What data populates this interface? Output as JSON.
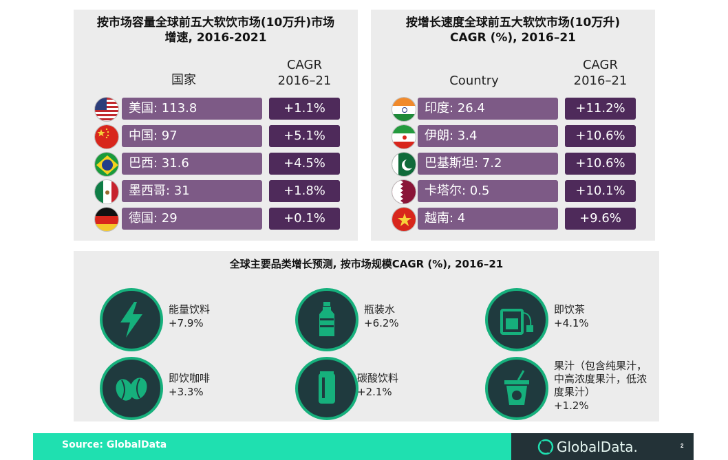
{
  "left_panel": {
    "title_line1": "按市场容量全球前五大软饮市场(10万升)市场",
    "title_line2": "增速, 2016-2021",
    "col_country": "国家",
    "col_cagr_line1": "CAGR",
    "col_cagr_line2": "2016–21",
    "rows": [
      {
        "flag": "usa-flag-icon",
        "label": "美国: 113.8",
        "cagr": "+1.1%"
      },
      {
        "flag": "china-flag-icon",
        "label": "中国: 97",
        "cagr": "+5.1%"
      },
      {
        "flag": "brazil-flag-icon",
        "label": "巴西: 31.6",
        "cagr": "+4.5%"
      },
      {
        "flag": "mexico-flag-icon",
        "label": "墨西哥: 31",
        "cagr": "+1.8%"
      },
      {
        "flag": "germany-flag-icon",
        "label": "德国: 29",
        "cagr": "+0.1%"
      }
    ]
  },
  "right_panel": {
    "title_line1": "按增长速度全球前五大软饮市场(10万升)",
    "title_line2": "CAGR (%), 2016–21",
    "col_country": "Country",
    "col_cagr_line1": "CAGR",
    "col_cagr_line2": "2016–21",
    "rows": [
      {
        "flag": "india-flag-icon",
        "label": "印度: 26.4",
        "cagr": "+11.2%"
      },
      {
        "flag": "iran-flag-icon",
        "label": "伊朗: 3.4",
        "cagr": "+10.6%"
      },
      {
        "flag": "pakistan-flag-icon",
        "label": "巴基斯坦: 7.2",
        "cagr": "+10.6%"
      },
      {
        "flag": "qatar-flag-icon",
        "label": "卡塔尔: 0.5",
        "cagr": "+10.1%"
      },
      {
        "flag": "vietnam-flag-icon",
        "label": "越南: 4",
        "cagr": "+9.6%"
      }
    ]
  },
  "bottom_panel": {
    "title": "全球主要品类增长预测, 按市场规模CAGR (%), 2016–21",
    "categories": [
      {
        "icon": "lightning-icon",
        "label": "能量饮料",
        "value": "+7.9%"
      },
      {
        "icon": "bottle-icon",
        "label": "瓶装水",
        "value": "+6.2%"
      },
      {
        "icon": "tea-cup-icon",
        "label": "即饮茶",
        "value": "+4.1%"
      },
      {
        "icon": "coffee-beans-icon",
        "label": "即饮咖啡",
        "value": "+3.3%"
      },
      {
        "icon": "soda-can-icon",
        "label": "碳酸饮料",
        "value": "+2.1%"
      },
      {
        "icon": "juice-cup-icon",
        "label": "果汁（包含纯果汁，\n中高浓度果汁，低浓\n度果汁）",
        "value": "+1.2%"
      }
    ]
  },
  "footer": {
    "source": "Source: GlobalData",
    "brand": "GlobalData.",
    "page": "2"
  },
  "colors": {
    "pill": "#7d5a86",
    "cagr_box": "#4e2a5a",
    "icon_bg": "#1f3a3e",
    "icon_ring": "#16b07c",
    "footer_green": "#1fe0b0",
    "footer_dark": "#233237"
  }
}
